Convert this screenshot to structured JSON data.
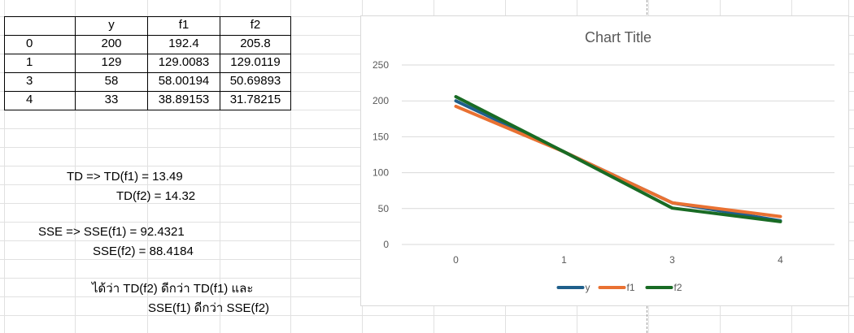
{
  "table": {
    "headers": [
      "",
      "y",
      "f1",
      "f2"
    ],
    "rows": [
      [
        "0",
        "200",
        "192.4",
        "205.8"
      ],
      [
        "1",
        "129",
        "129.0083",
        "129.0119"
      ],
      [
        "3",
        "58",
        "58.00194",
        "50.69893"
      ],
      [
        "4",
        "33",
        "38.89153",
        "31.78215"
      ]
    ]
  },
  "notes": {
    "td_line1": "TD => TD(f1) = 13.49",
    "td_line2": "TD(f2) = 14.32",
    "sse_line1": "SSE => SSE(f1) = 92.4321",
    "sse_line2": "SSE(f2) = 88.4184",
    "conclusion_line1": "ได้ว่า TD(f2) ดีกว่า TD(f1) และ",
    "conclusion_line2": "SSE(f1) ดีกว่า SSE(f2)"
  },
  "chart_data": {
    "type": "line",
    "title": "Chart Title",
    "categories": [
      "0",
      "1",
      "3",
      "4"
    ],
    "ylim": [
      0,
      250
    ],
    "yticks": [
      0,
      50,
      100,
      150,
      200,
      250
    ],
    "grid": true,
    "legend": "bottom",
    "series": [
      {
        "name": "y",
        "color": "#1f5f8b",
        "values": [
          200,
          129,
          58,
          33
        ]
      },
      {
        "name": "f1",
        "color": "#e97132",
        "values": [
          192.4,
          129.0083,
          58.00194,
          38.89153
        ]
      },
      {
        "name": "f2",
        "color": "#196b24",
        "values": [
          205.8,
          129.0119,
          50.69893,
          31.78215
        ]
      }
    ]
  }
}
